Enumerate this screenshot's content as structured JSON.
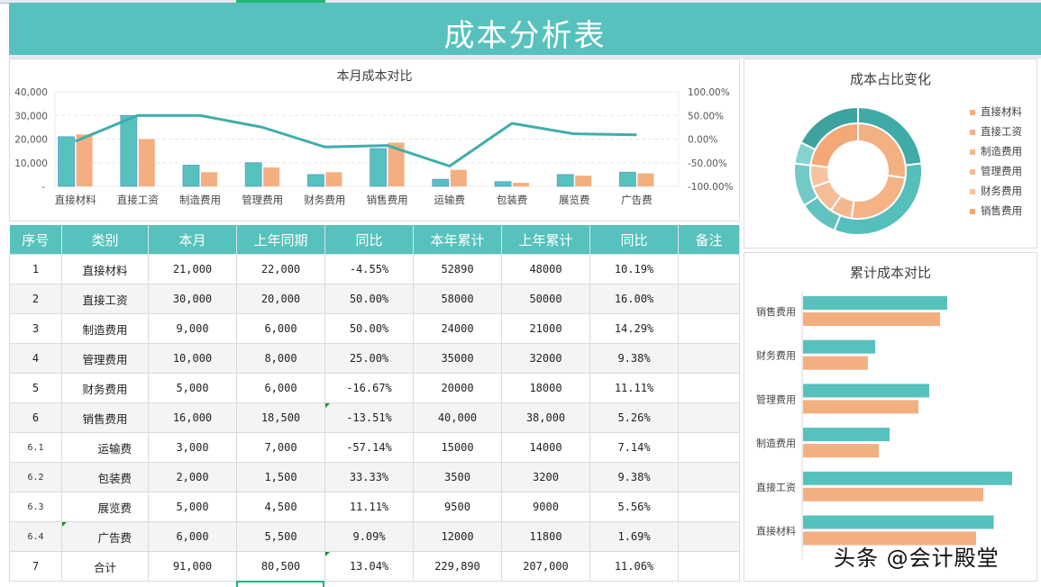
{
  "title": "成本分析表",
  "colors": {
    "teal": "#57C1BD",
    "orange": "#F4AF80",
    "line": "#3FAEAA",
    "header_text": "#FFFFFF"
  },
  "combo_chart": {
    "title": "本月成本对比",
    "left_axis_ticks": [
      "40,000",
      "30,000",
      "20,000",
      "10,000",
      "-"
    ],
    "right_axis_ticks": [
      "100.00%",
      "50.00%",
      "0.00%",
      "-50.00%",
      "-100.00%"
    ]
  },
  "donut_chart": {
    "title": "成本占比变化",
    "legend": [
      "直接材料",
      "直接工资",
      "制造费用",
      "管理费用",
      "财务费用",
      "销售费用"
    ]
  },
  "hbar_chart": {
    "title": "累计成本对比",
    "categories": [
      "销售费用",
      "财务费用",
      "管理费用",
      "制造费用",
      "直接工资",
      "直接材料"
    ]
  },
  "table": {
    "headers": [
      "序号",
      "类别",
      "本月",
      "上年同期",
      "同比",
      "本年累计",
      "上年累计",
      "同比",
      "备注"
    ],
    "rows": [
      {
        "idx": "1",
        "cat": "直接材料",
        "cur": "21,000",
        "prev": "22,000",
        "yoy": "-4.55%",
        "ytd": "52890",
        "pytd": "48000",
        "ytd_yoy": "10.19%",
        "note": ""
      },
      {
        "idx": "2",
        "cat": "直接工资",
        "cur": "30,000",
        "prev": "20,000",
        "yoy": "50.00%",
        "ytd": "58000",
        "pytd": "50000",
        "ytd_yoy": "16.00%",
        "note": ""
      },
      {
        "idx": "3",
        "cat": "制造费用",
        "cur": "9,000",
        "prev": "6,000",
        "yoy": "50.00%",
        "ytd": "24000",
        "pytd": "21000",
        "ytd_yoy": "14.29%",
        "note": ""
      },
      {
        "idx": "4",
        "cat": "管理费用",
        "cur": "10,000",
        "prev": "8,000",
        "yoy": "25.00%",
        "ytd": "35000",
        "pytd": "32000",
        "ytd_yoy": "9.38%",
        "note": ""
      },
      {
        "idx": "5",
        "cat": "财务费用",
        "cur": "5,000",
        "prev": "6,000",
        "yoy": "-16.67%",
        "ytd": "20000",
        "pytd": "18000",
        "ytd_yoy": "11.11%",
        "note": ""
      },
      {
        "idx": "6",
        "cat": "销售费用",
        "cur": "16,000",
        "prev": "18,500",
        "yoy": "-13.51%",
        "ytd": "40,000",
        "pytd": "38,000",
        "ytd_yoy": "5.26%",
        "note": ""
      },
      {
        "idx": "6.1",
        "cat": "运输费",
        "cur": "3,000",
        "prev": "7,000",
        "yoy": "-57.14%",
        "ytd": "15000",
        "pytd": "14000",
        "ytd_yoy": "7.14%",
        "note": ""
      },
      {
        "idx": "6.2",
        "cat": "包装费",
        "cur": "2,000",
        "prev": "1,500",
        "yoy": "33.33%",
        "ytd": "3500",
        "pytd": "3200",
        "ytd_yoy": "9.38%",
        "note": ""
      },
      {
        "idx": "6.3",
        "cat": "展览费",
        "cur": "5,000",
        "prev": "4,500",
        "yoy": "11.11%",
        "ytd": "9500",
        "pytd": "9000",
        "ytd_yoy": "5.56%",
        "note": ""
      },
      {
        "idx": "6.4",
        "cat": "广告费",
        "cur": "6,000",
        "prev": "5,500",
        "yoy": "9.09%",
        "ytd": "12000",
        "pytd": "11800",
        "ytd_yoy": "1.69%",
        "note": ""
      },
      {
        "idx": "7",
        "cat": "合计",
        "cur": "91,000",
        "prev": "80,500",
        "yoy": "13.04%",
        "ytd": "229,890",
        "pytd": "207,000",
        "ytd_yoy": "11.06%",
        "note": ""
      }
    ]
  },
  "watermark": "头条 @会计殿堂",
  "chart_data": [
    {
      "type": "bar",
      "title": "本月成本对比",
      "categories": [
        "直接材料",
        "直接工资",
        "制造费用",
        "管理费用",
        "财务费用",
        "销售费用",
        "运输费",
        "包装费",
        "展览费",
        "广告费"
      ],
      "series": [
        {
          "name": "本月",
          "type": "bar",
          "axis": "left",
          "color": "#57C1BD",
          "values": [
            21000,
            30000,
            9000,
            10000,
            5000,
            16000,
            3000,
            2000,
            5000,
            6000
          ]
        },
        {
          "name": "上年同期",
          "type": "bar",
          "axis": "left",
          "color": "#F4AF80",
          "values": [
            22000,
            20000,
            6000,
            8000,
            6000,
            18500,
            7000,
            1500,
            4500,
            5500
          ]
        },
        {
          "name": "同比",
          "type": "line",
          "axis": "right",
          "color": "#3FAEAA",
          "values": [
            -4.55,
            50.0,
            50.0,
            25.0,
            -16.67,
            -13.51,
            -57.14,
            33.33,
            11.11,
            9.09
          ]
        }
      ],
      "ylim_left": [
        0,
        40000
      ],
      "ylim_right": [
        -100,
        100
      ],
      "grid": true,
      "legend": "none"
    },
    {
      "type": "pie",
      "title": "成本占比变化",
      "subtype": "double-donut",
      "categories": [
        "直接材料",
        "直接工资",
        "制造费用",
        "管理费用",
        "财务费用",
        "销售费用"
      ],
      "series": [
        {
          "name": "本月 (outer)",
          "values": [
            21000,
            30000,
            9000,
            10000,
            5000,
            16000
          ]
        },
        {
          "name": "上年同期 (inner)",
          "values": [
            22000,
            20000,
            6000,
            8000,
            6000,
            18500
          ]
        }
      ],
      "legend_position": "right"
    },
    {
      "type": "bar",
      "orientation": "horizontal",
      "title": "累计成本对比",
      "categories": [
        "直接材料",
        "直接工资",
        "制造费用",
        "管理费用",
        "财务费用",
        "销售费用"
      ],
      "series": [
        {
          "name": "本年累计",
          "color": "#57C1BD",
          "values": [
            52890,
            58000,
            24000,
            35000,
            20000,
            40000
          ]
        },
        {
          "name": "上年累计",
          "color": "#F4AF80",
          "values": [
            48000,
            50000,
            21000,
            32000,
            18000,
            38000
          ]
        }
      ]
    }
  ]
}
